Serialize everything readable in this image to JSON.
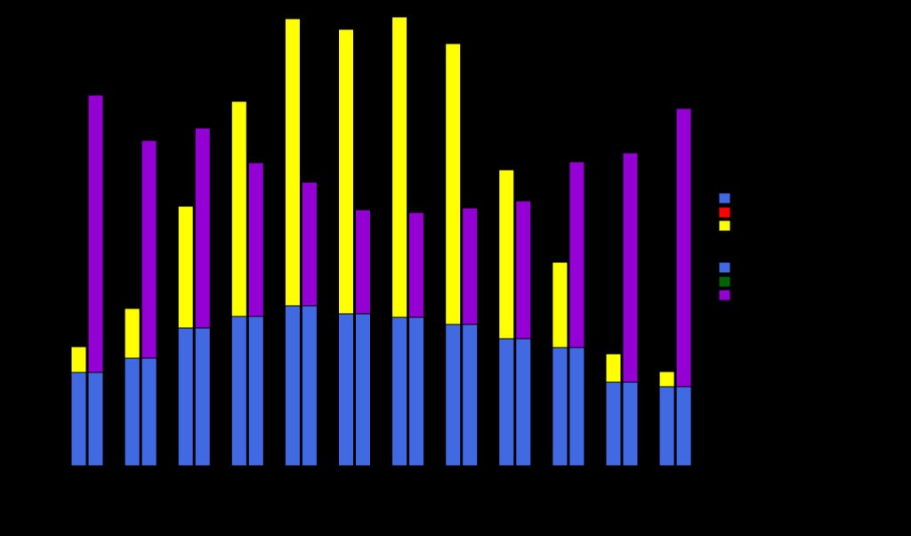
{
  "chart_data": {
    "type": "bar",
    "stacked": true,
    "grouped": true,
    "background": "#000000",
    "categories": [
      "",
      "",
      "",
      "",
      "",
      "",
      "",
      "",
      "",
      "",
      "",
      ""
    ],
    "ylim": [
      0,
      500
    ],
    "grid": false,
    "legend_position": "right",
    "groups": [
      {
        "series": [
          {
            "color": "#4169E1",
            "values": [
              105,
              121,
              155,
              168,
              180,
              171,
              167,
              159,
              143,
              133,
              94,
              89
            ]
          },
          {
            "color": "#FF0000",
            "values": [
              0,
              0,
              0,
              0,
              0,
              0,
              0,
              0,
              0,
              0,
              0,
              0
            ]
          },
          {
            "color": "#FFFF00",
            "values": [
              29,
              56,
              137,
              242,
              323,
              320,
              338,
              316,
              190,
              96,
              32,
              17
            ]
          }
        ]
      },
      {
        "series": [
          {
            "color": "#4169E1",
            "values": [
              105,
              121,
              155,
              168,
              180,
              171,
              167,
              159,
              143,
              133,
              94,
              89
            ]
          },
          {
            "color": "#006400",
            "values": [
              0,
              0,
              0,
              0,
              0,
              0,
              0,
              0,
              0,
              0,
              0,
              0
            ]
          },
          {
            "color": "#9400D3",
            "values": [
              312,
              245,
              225,
              173,
              139,
              117,
              118,
              131,
              155,
              209,
              258,
              313
            ]
          }
        ]
      }
    ],
    "legend": [
      {
        "color": "#4169E1"
      },
      {
        "color": "#FF0000"
      },
      {
        "color": "#FFFF00"
      },
      {
        "color": "#4169E1"
      },
      {
        "color": "#006400"
      },
      {
        "color": "#9400D3"
      }
    ]
  }
}
